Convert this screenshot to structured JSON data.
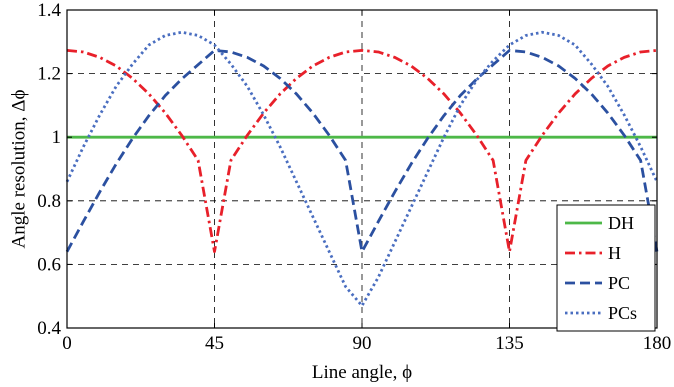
{
  "chart_data": {
    "type": "line",
    "xlabel": "Line angle, ϕ",
    "ylabel": "Angle resolution, Δϕ",
    "xlim": [
      0,
      180
    ],
    "ylim": [
      0.4,
      1.4
    ],
    "xticks": [
      0,
      45,
      90,
      135,
      180
    ],
    "yticks": [
      0.4,
      0.6,
      0.8,
      1,
      1.2,
      1.4
    ],
    "xtick_labels": [
      "0",
      "45",
      "90",
      "135",
      "180"
    ],
    "ytick_labels": [
      "0.4",
      "0.6",
      "0.8",
      "1",
      "1.2",
      "1.4"
    ],
    "grid": true,
    "legend_position": "bottom-right",
    "series": [
      {
        "name": "DH",
        "color": "#4db848",
        "dash": "solid",
        "x": [
          0,
          180
        ],
        "y": [
          1.0,
          1.0
        ]
      },
      {
        "name": "H",
        "color": "#e8202a",
        "dash": "dashdot",
        "x": [
          0,
          5,
          10,
          15,
          20,
          25,
          30,
          35,
          40,
          45,
          50,
          55,
          60,
          65,
          70,
          75,
          80,
          85,
          90,
          95,
          100,
          105,
          110,
          115,
          120,
          125,
          130,
          135,
          140,
          145,
          150,
          155,
          160,
          165,
          170,
          175,
          180
        ],
        "y": [
          1.273,
          1.268,
          1.251,
          1.224,
          1.185,
          1.136,
          1.076,
          1.006,
          0.927,
          0.64,
          0.927,
          1.006,
          1.076,
          1.136,
          1.185,
          1.224,
          1.251,
          1.268,
          1.273,
          1.268,
          1.251,
          1.224,
          1.185,
          1.136,
          1.076,
          1.006,
          0.927,
          0.64,
          0.927,
          1.006,
          1.076,
          1.136,
          1.185,
          1.224,
          1.251,
          1.268,
          1.273
        ]
      },
      {
        "name": "PC",
        "color": "#2b50a0",
        "dash": "dashed",
        "x": [
          0,
          5,
          10,
          15,
          20,
          25,
          30,
          35,
          40,
          45,
          50,
          55,
          60,
          65,
          70,
          75,
          80,
          85,
          90,
          95,
          100,
          105,
          110,
          115,
          120,
          125,
          130,
          135,
          140,
          145,
          150,
          155,
          160,
          165,
          170,
          175,
          180
        ],
        "y": [
          0.64,
          0.735,
          0.828,
          0.916,
          0.996,
          1.068,
          1.131,
          1.183,
          1.228,
          1.273,
          1.268,
          1.251,
          1.224,
          1.185,
          1.136,
          1.076,
          1.006,
          0.927,
          0.64,
          0.735,
          0.828,
          0.916,
          0.996,
          1.068,
          1.131,
          1.183,
          1.228,
          1.273,
          1.268,
          1.251,
          1.224,
          1.185,
          1.136,
          1.076,
          1.006,
          0.927,
          0.64
        ]
      },
      {
        "name": "PCs",
        "color": "#4a6ec0",
        "dash": "dotted",
        "x": [
          0,
          5,
          10,
          15,
          20,
          25,
          30,
          35,
          40,
          45,
          50,
          55,
          60,
          65,
          70,
          75,
          80,
          85,
          90,
          95,
          100,
          105,
          110,
          115,
          120,
          125,
          130,
          135,
          140,
          145,
          150,
          155,
          160,
          165,
          170,
          175,
          180
        ],
        "y": [
          0.86,
          0.97,
          1.07,
          1.16,
          1.23,
          1.29,
          1.32,
          1.33,
          1.32,
          1.29,
          1.23,
          1.16,
          1.07,
          0.97,
          0.86,
          0.75,
          0.64,
          0.53,
          0.47,
          0.56,
          0.67,
          0.78,
          0.89,
          1.0,
          1.1,
          1.18,
          1.24,
          1.29,
          1.32,
          1.33,
          1.32,
          1.29,
          1.23,
          1.16,
          1.07,
          0.97,
          0.86
        ]
      }
    ]
  }
}
